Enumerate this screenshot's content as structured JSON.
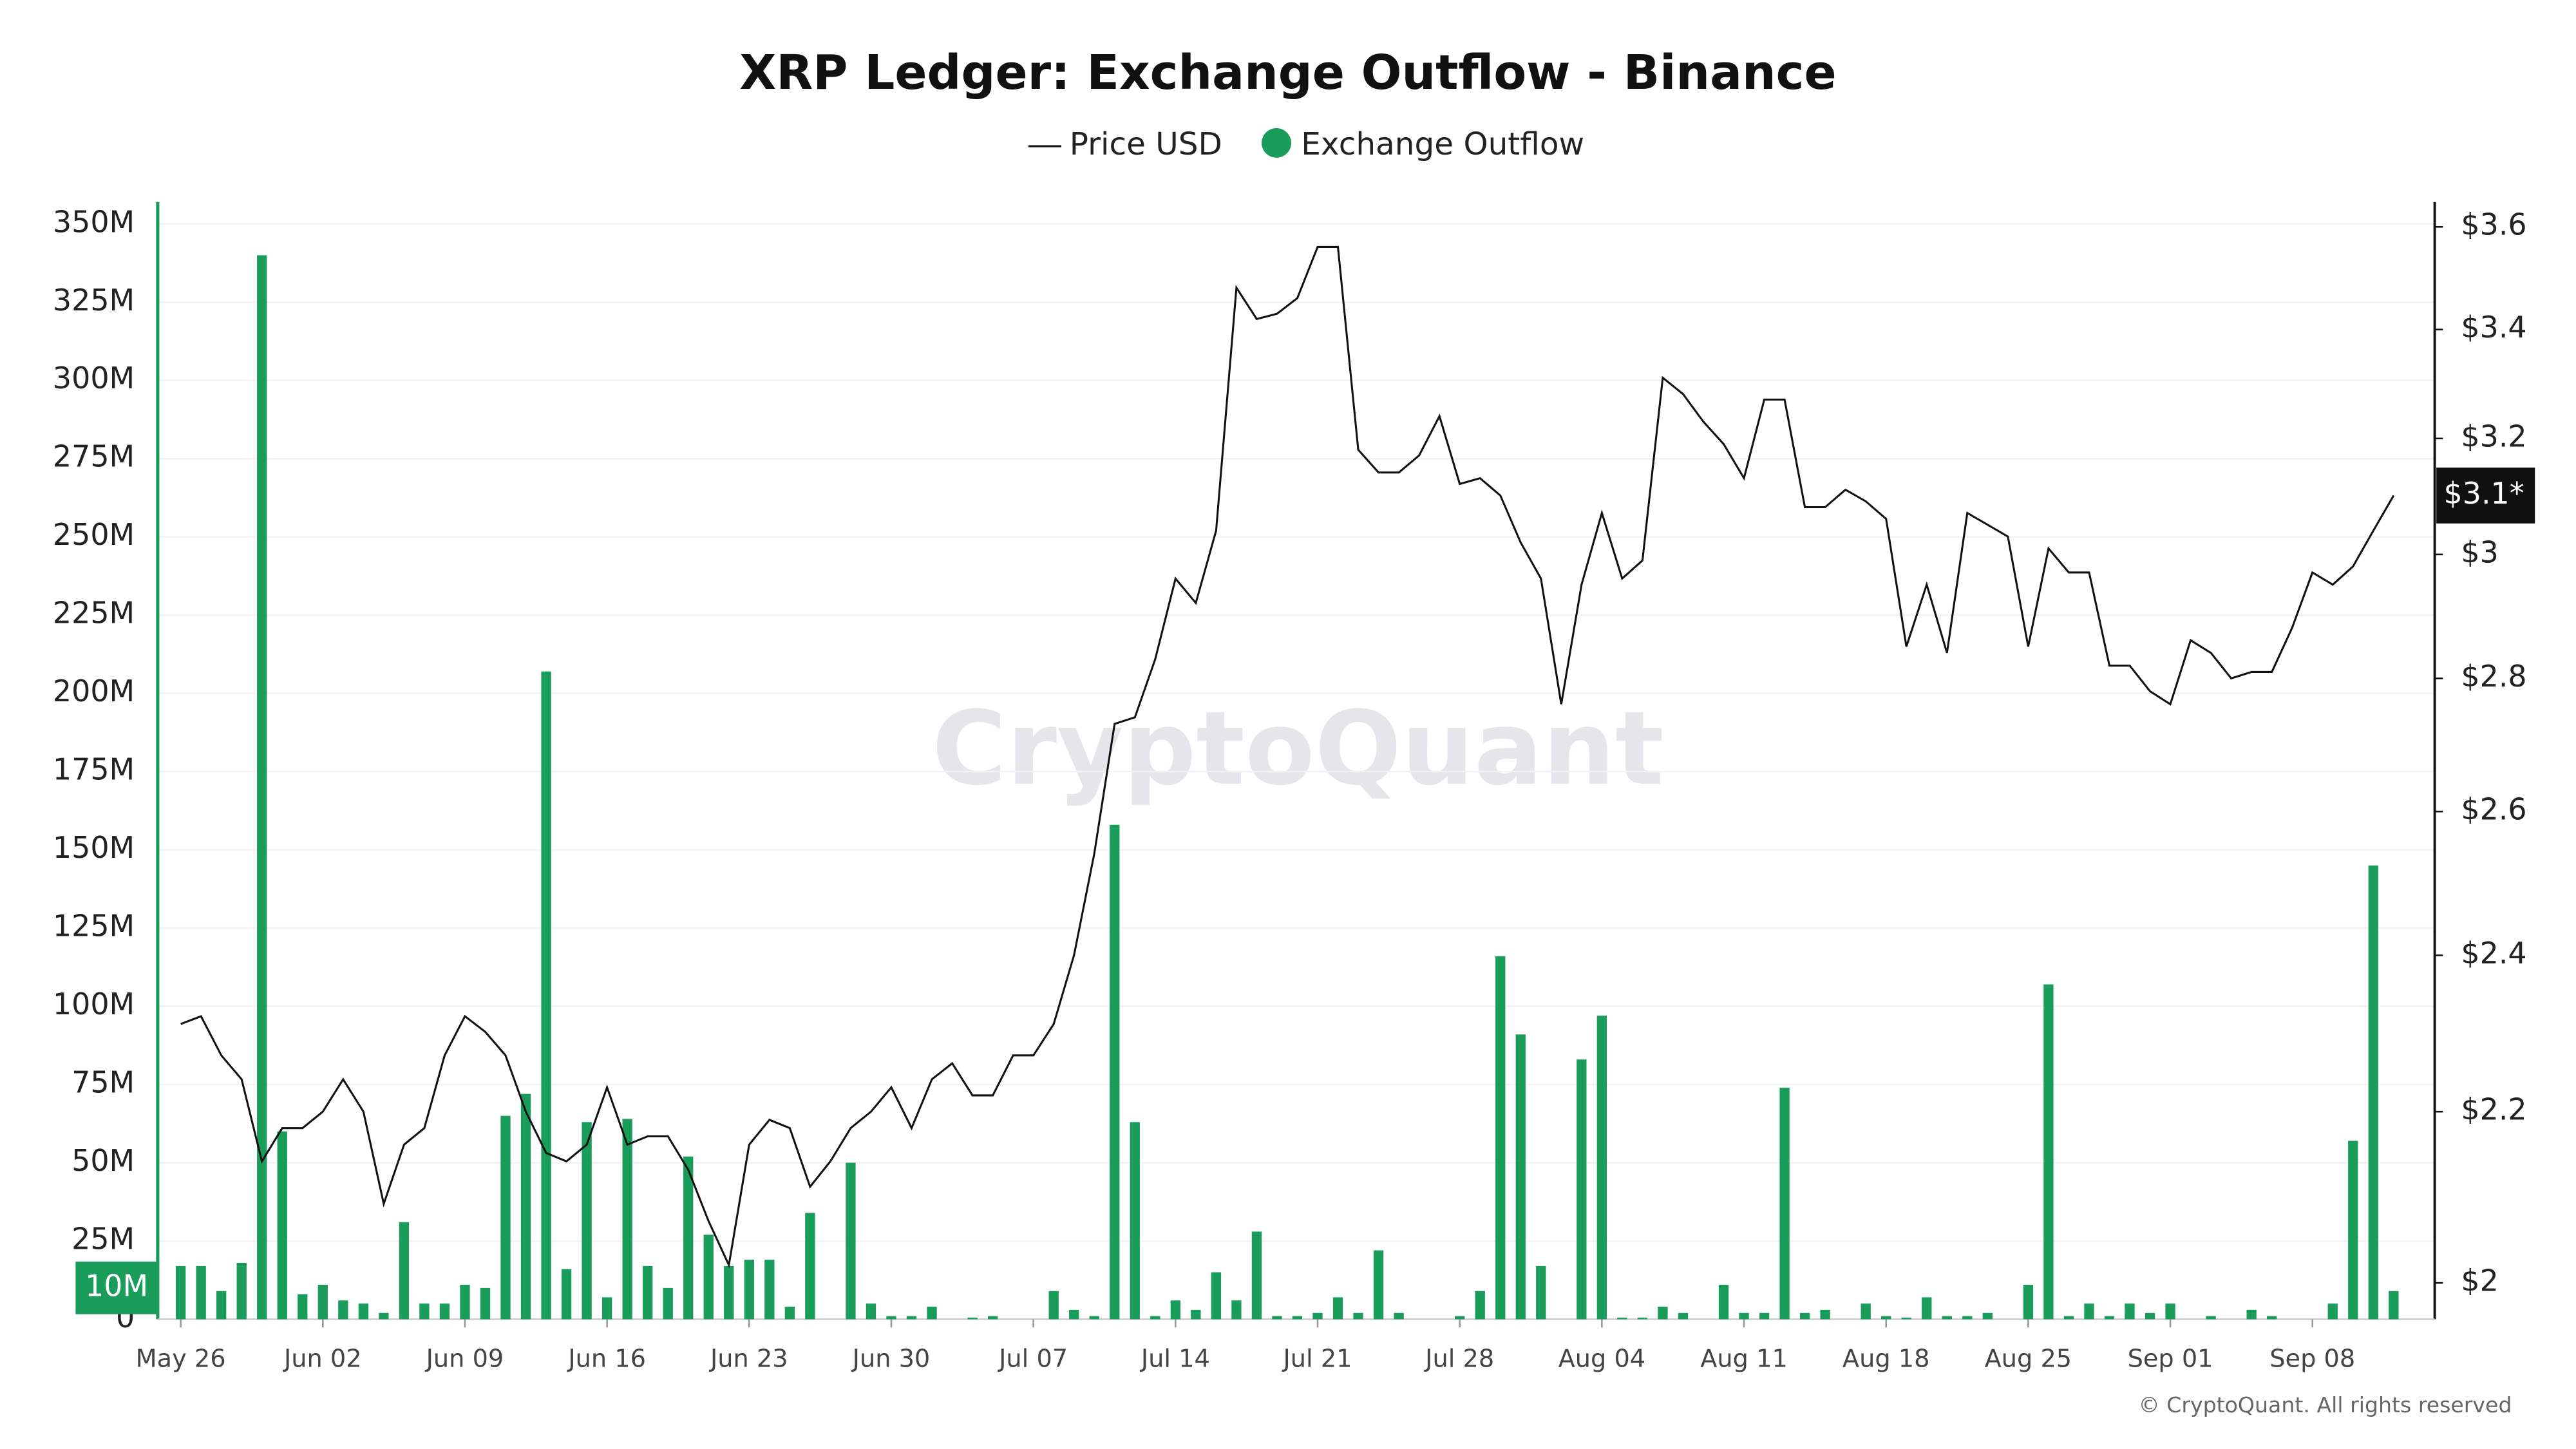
{
  "chart_data": {
    "type": "bar",
    "title": "XRP Ledger: Exchange Outflow - Binance",
    "watermark": "CryptoQuant",
    "credit": "© CryptoQuant. All rights reserved",
    "categories": [
      "May 26",
      null,
      null,
      null,
      null,
      null,
      null,
      "Jun 02",
      null,
      null,
      null,
      null,
      null,
      null,
      "Jun 09",
      null,
      null,
      null,
      null,
      null,
      null,
      "Jun 16",
      null,
      null,
      null,
      null,
      null,
      null,
      "Jun 23",
      null,
      null,
      null,
      null,
      null,
      null,
      "Jun 30",
      null,
      null,
      null,
      null,
      null,
      null,
      "Jul 07",
      null,
      null,
      null,
      null,
      null,
      null,
      "Jul 14",
      null,
      null,
      null,
      null,
      null,
      null,
      "Jul 21",
      null,
      null,
      null,
      null,
      null,
      null,
      "Jul 28",
      null,
      null,
      null,
      null,
      null,
      null,
      "Aug 04",
      null,
      null,
      null,
      null,
      null,
      null,
      "Aug 11",
      null,
      null,
      null,
      null,
      null,
      null,
      "Aug 18",
      null,
      null,
      null,
      null,
      null,
      null,
      "Aug 25",
      null,
      null,
      null,
      null,
      null,
      null,
      "Sep 01",
      null,
      null,
      null,
      null,
      null,
      null,
      "Sep 08",
      null,
      null,
      null,
      null
    ],
    "series": [
      {
        "name": "Price USD",
        "type": "line",
        "axis": "y2",
        "color": "#111111",
        "values": [
          2.31,
          2.32,
          2.27,
          2.24,
          2.14,
          2.18,
          2.18,
          2.2,
          2.24,
          2.2,
          2.09,
          2.16,
          2.18,
          2.27,
          2.32,
          2.3,
          2.27,
          2.2,
          2.15,
          2.14,
          2.16,
          2.23,
          2.16,
          2.17,
          2.17,
          2.13,
          2.07,
          2.02,
          2.16,
          2.19,
          2.18,
          2.11,
          2.14,
          2.18,
          2.2,
          2.23,
          2.18,
          2.24,
          2.26,
          2.22,
          2.22,
          2.27,
          2.27,
          2.31,
          2.4,
          2.54,
          2.73,
          2.74,
          2.83,
          2.96,
          2.92,
          3.04,
          3.48,
          3.42,
          3.43,
          3.46,
          3.56,
          3.56,
          3.18,
          3.14,
          3.14,
          3.17,
          3.24,
          3.12,
          3.13,
          3.1,
          3.02,
          2.96,
          2.76,
          2.95,
          3.07,
          2.96,
          2.99,
          3.31,
          3.28,
          3.23,
          3.19,
          3.13,
          3.27,
          3.27,
          3.08,
          3.08,
          3.11,
          3.09,
          3.06,
          2.85,
          2.95,
          2.84,
          3.07,
          3.05,
          3.03,
          2.85,
          3.01,
          2.97,
          2.97,
          2.82,
          2.82,
          2.78,
          2.76,
          2.86,
          2.84,
          2.8,
          2.81,
          2.81,
          2.88,
          2.97,
          2.95,
          2.98,
          3.04,
          3.1
        ]
      },
      {
        "name": "Exchange Outflow",
        "type": "bar",
        "color": "#1a9c5b",
        "values": [
          17000000,
          17000000,
          9000000,
          18000000,
          340000000,
          60000000,
          8000000,
          11000000,
          6000000,
          5000000,
          2000000,
          31000000,
          5000000,
          5000000,
          11000000,
          10000000,
          65000000,
          72000000,
          207000000,
          16000000,
          63000000,
          7000000,
          64000000,
          17000000,
          10000000,
          52000000,
          27000000,
          17000000,
          19000000,
          19000000,
          4000000,
          34000000,
          0,
          50000000,
          5000000,
          1000000,
          1000000,
          4000000,
          0,
          500000,
          1000000,
          0,
          0,
          9000000,
          3000000,
          1000000,
          158000000,
          63000000,
          1000000,
          6000000,
          3000000,
          15000000,
          6000000,
          28000000,
          1000000,
          1000000,
          2000000,
          7000000,
          2000000,
          22000000,
          2000000,
          0,
          0,
          1000000,
          9000000,
          116000000,
          91000000,
          17000000,
          0,
          83000000,
          97000000,
          500000,
          500000,
          4000000,
          2000000,
          0,
          11000000,
          2000000,
          2000000,
          74000000,
          2000000,
          3000000,
          0,
          5000000,
          1000000,
          500000,
          7000000,
          1000000,
          1000000,
          2000000,
          0,
          11000000,
          107000000,
          1000000,
          5000000,
          1000000,
          5000000,
          2000000,
          5000000,
          0,
          1000000,
          0,
          3000000,
          1000000,
          0,
          0,
          5000000,
          57000000,
          145000000,
          9000000
        ]
      }
    ],
    "ylim": [
      0,
      357000000
    ],
    "yticks": [
      {
        "value": 0,
        "label": "0"
      },
      {
        "value": 25000000,
        "label": "25M"
      },
      {
        "value": 50000000,
        "label": "50M"
      },
      {
        "value": 75000000,
        "label": "75M"
      },
      {
        "value": 100000000,
        "label": "100M"
      },
      {
        "value": 125000000,
        "label": "125M"
      },
      {
        "value": 150000000,
        "label": "150M"
      },
      {
        "value": 175000000,
        "label": "175M"
      },
      {
        "value": 200000000,
        "label": "200M"
      },
      {
        "value": 225000000,
        "label": "225M"
      },
      {
        "value": 250000000,
        "label": "250M"
      },
      {
        "value": 275000000,
        "label": "275M"
      },
      {
        "value": 300000000,
        "label": "300M"
      },
      {
        "value": 325000000,
        "label": "325M"
      },
      {
        "value": 350000000,
        "label": "350M"
      }
    ],
    "y2lim": [
      1.96,
      3.65
    ],
    "y2log": true,
    "y2ticks": [
      {
        "value": 2,
        "label": "$2"
      },
      {
        "value": 2.2,
        "label": "$2.2"
      },
      {
        "value": 2.4,
        "label": "$2.4"
      },
      {
        "value": 2.6,
        "label": "$2.6"
      },
      {
        "value": 2.8,
        "label": "$2.8"
      },
      {
        "value": 3,
        "label": "$3"
      },
      {
        "value": 3.2,
        "label": "$3.2"
      },
      {
        "value": 3.4,
        "label": "$3.4"
      },
      {
        "value": 3.6,
        "label": "$3.6"
      }
    ],
    "grid": true,
    "annotations": [
      {
        "value": 10000000,
        "label": "10M",
        "axis": "y",
        "color": "#1a9c5b"
      },
      {
        "value": 3.1,
        "label": "$3.1*",
        "axis": "y2",
        "color": "#111111"
      }
    ]
  }
}
